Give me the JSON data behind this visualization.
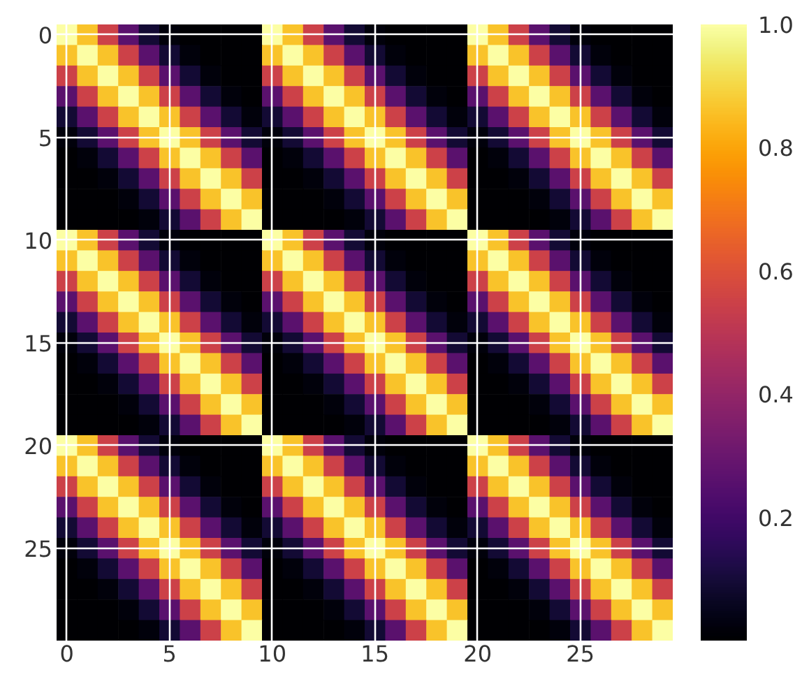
{
  "chart_data": {
    "type": "heatmap",
    "categories": [
      "0",
      null,
      null,
      null,
      null,
      "5",
      null,
      null,
      null,
      null,
      "10",
      null,
      null,
      null,
      null,
      "15",
      null,
      null,
      null,
      null,
      "20",
      null,
      null,
      null,
      null,
      "25",
      null,
      null,
      null,
      null
    ],
    "y_categories": [
      "0",
      null,
      null,
      null,
      null,
      "5",
      null,
      null,
      null,
      null,
      "10",
      null,
      null,
      null,
      null,
      "15",
      null,
      null,
      null,
      null,
      "20",
      null,
      null,
      null,
      null,
      "25",
      null,
      null,
      null,
      null
    ],
    "cells": [
      [
        1.0,
        0.86,
        0.55,
        0.26,
        0.09,
        0.02,
        0,
        0,
        0,
        0,
        1.0,
        0.86,
        0.55,
        0.26,
        0.09,
        0.02,
        0,
        0,
        0,
        0,
        1.0,
        0.86,
        0.55,
        0.26,
        0.09,
        0.02,
        0,
        0,
        0,
        0
      ],
      [
        0.86,
        1.0,
        0.86,
        0.55,
        0.26,
        0.09,
        0.02,
        0,
        0,
        0,
        0.86,
        1.0,
        0.86,
        0.55,
        0.26,
        0.09,
        0.02,
        0,
        0,
        0,
        0.86,
        1.0,
        0.86,
        0.55,
        0.26,
        0.09,
        0.02,
        0,
        0,
        0
      ],
      [
        0.55,
        0.86,
        1.0,
        0.86,
        0.55,
        0.26,
        0.09,
        0.02,
        0,
        0,
        0.55,
        0.86,
        1.0,
        0.86,
        0.55,
        0.26,
        0.09,
        0.02,
        0,
        0,
        0.55,
        0.86,
        1.0,
        0.86,
        0.55,
        0.26,
        0.09,
        0.02,
        0,
        0
      ],
      [
        0.26,
        0.55,
        0.86,
        1.0,
        0.86,
        0.55,
        0.26,
        0.09,
        0.02,
        0,
        0.26,
        0.55,
        0.86,
        1.0,
        0.86,
        0.55,
        0.26,
        0.09,
        0.02,
        0,
        0.26,
        0.55,
        0.86,
        1.0,
        0.86,
        0.55,
        0.26,
        0.09,
        0.02,
        0
      ],
      [
        0.09,
        0.26,
        0.55,
        0.86,
        1.0,
        0.86,
        0.55,
        0.26,
        0.09,
        0.02,
        0.09,
        0.26,
        0.55,
        0.86,
        1.0,
        0.86,
        0.55,
        0.26,
        0.09,
        0.02,
        0.09,
        0.26,
        0.55,
        0.86,
        1.0,
        0.86,
        0.55,
        0.26,
        0.09,
        0.02
      ],
      [
        0.02,
        0.09,
        0.26,
        0.55,
        0.86,
        1.0,
        0.86,
        0.55,
        0.26,
        0.09,
        0.02,
        0.09,
        0.26,
        0.55,
        0.86,
        1.0,
        0.86,
        0.55,
        0.26,
        0.09,
        0.02,
        0.09,
        0.26,
        0.55,
        0.86,
        1.0,
        0.86,
        0.55,
        0.26,
        0.09
      ],
      [
        0,
        0.02,
        0.09,
        0.26,
        0.55,
        0.86,
        1.0,
        0.86,
        0.55,
        0.26,
        0,
        0.02,
        0.09,
        0.26,
        0.55,
        0.86,
        1.0,
        0.86,
        0.55,
        0.26,
        0,
        0.02,
        0.09,
        0.26,
        0.55,
        0.86,
        1.0,
        0.86,
        0.55,
        0.26
      ],
      [
        0,
        0,
        0.02,
        0.09,
        0.26,
        0.55,
        0.86,
        1.0,
        0.86,
        0.55,
        0,
        0,
        0.02,
        0.09,
        0.26,
        0.55,
        0.86,
        1.0,
        0.86,
        0.55,
        0,
        0,
        0.02,
        0.09,
        0.26,
        0.55,
        0.86,
        1.0,
        0.86,
        0.55
      ],
      [
        0,
        0,
        0,
        0.02,
        0.09,
        0.26,
        0.55,
        0.86,
        1.0,
        0.86,
        0,
        0,
        0,
        0.02,
        0.09,
        0.26,
        0.55,
        0.86,
        1.0,
        0.86,
        0,
        0,
        0,
        0.02,
        0.09,
        0.26,
        0.55,
        0.86,
        1.0,
        0.86
      ],
      [
        0,
        0,
        0,
        0,
        0.02,
        0.09,
        0.26,
        0.55,
        0.86,
        1.0,
        0,
        0,
        0,
        0,
        0.02,
        0.09,
        0.26,
        0.55,
        0.86,
        1.0,
        0,
        0,
        0,
        0,
        0.02,
        0.09,
        0.26,
        0.55,
        0.86,
        1.0
      ],
      [
        1.0,
        0.86,
        0.55,
        0.26,
        0.09,
        0.02,
        0,
        0,
        0,
        0,
        1.0,
        0.86,
        0.55,
        0.26,
        0.09,
        0.02,
        0,
        0,
        0,
        0,
        1.0,
        0.86,
        0.55,
        0.26,
        0.09,
        0.02,
        0,
        0,
        0,
        0
      ],
      [
        0.86,
        1.0,
        0.86,
        0.55,
        0.26,
        0.09,
        0.02,
        0,
        0,
        0,
        0.86,
        1.0,
        0.86,
        0.55,
        0.26,
        0.09,
        0.02,
        0,
        0,
        0,
        0.86,
        1.0,
        0.86,
        0.55,
        0.26,
        0.09,
        0.02,
        0,
        0,
        0
      ],
      [
        0.55,
        0.86,
        1.0,
        0.86,
        0.55,
        0.26,
        0.09,
        0.02,
        0,
        0,
        0.55,
        0.86,
        1.0,
        0.86,
        0.55,
        0.26,
        0.09,
        0.02,
        0,
        0,
        0.55,
        0.86,
        1.0,
        0.86,
        0.55,
        0.26,
        0.09,
        0.02,
        0,
        0
      ],
      [
        0.26,
        0.55,
        0.86,
        1.0,
        0.86,
        0.55,
        0.26,
        0.09,
        0.02,
        0,
        0.26,
        0.55,
        0.86,
        1.0,
        0.86,
        0.55,
        0.26,
        0.09,
        0.02,
        0,
        0.26,
        0.55,
        0.86,
        1.0,
        0.86,
        0.55,
        0.26,
        0.09,
        0.02,
        0
      ],
      [
        0.09,
        0.26,
        0.55,
        0.86,
        1.0,
        0.86,
        0.55,
        0.26,
        0.09,
        0.02,
        0.09,
        0.26,
        0.55,
        0.86,
        1.0,
        0.86,
        0.55,
        0.26,
        0.09,
        0.02,
        0.09,
        0.26,
        0.55,
        0.86,
        1.0,
        0.86,
        0.55,
        0.26,
        0.09,
        0.02
      ],
      [
        0.02,
        0.09,
        0.26,
        0.55,
        0.86,
        1.0,
        0.86,
        0.55,
        0.26,
        0.09,
        0.02,
        0.09,
        0.26,
        0.55,
        0.86,
        1.0,
        0.86,
        0.55,
        0.26,
        0.09,
        0.02,
        0.09,
        0.26,
        0.55,
        0.86,
        1.0,
        0.86,
        0.55,
        0.26,
        0.09
      ],
      [
        0,
        0.02,
        0.09,
        0.26,
        0.55,
        0.86,
        1.0,
        0.86,
        0.55,
        0.26,
        0,
        0.02,
        0.09,
        0.26,
        0.55,
        0.86,
        1.0,
        0.86,
        0.55,
        0.26,
        0,
        0.02,
        0.09,
        0.26,
        0.55,
        0.86,
        1.0,
        0.86,
        0.55,
        0.26
      ],
      [
        0,
        0,
        0.02,
        0.09,
        0.26,
        0.55,
        0.86,
        1.0,
        0.86,
        0.55,
        0,
        0,
        0.02,
        0.09,
        0.26,
        0.55,
        0.86,
        1.0,
        0.86,
        0.55,
        0,
        0,
        0.02,
        0.09,
        0.26,
        0.55,
        0.86,
        1.0,
        0.86,
        0.55
      ],
      [
        0,
        0,
        0,
        0.02,
        0.09,
        0.26,
        0.55,
        0.86,
        1.0,
        0.86,
        0,
        0,
        0,
        0.02,
        0.09,
        0.26,
        0.55,
        0.86,
        1.0,
        0.86,
        0,
        0,
        0,
        0.02,
        0.09,
        0.26,
        0.55,
        0.86,
        1.0,
        0.86
      ],
      [
        0,
        0,
        0,
        0,
        0.02,
        0.09,
        0.26,
        0.55,
        0.86,
        1.0,
        0,
        0,
        0,
        0,
        0.02,
        0.09,
        0.26,
        0.55,
        0.86,
        1.0,
        0,
        0,
        0,
        0,
        0.02,
        0.09,
        0.26,
        0.55,
        0.86,
        1.0
      ],
      [
        1.0,
        0.86,
        0.55,
        0.26,
        0.09,
        0.02,
        0,
        0,
        0,
        0,
        1.0,
        0.86,
        0.55,
        0.26,
        0.09,
        0.02,
        0,
        0,
        0,
        0,
        1.0,
        0.86,
        0.55,
        0.26,
        0.09,
        0.02,
        0,
        0,
        0,
        0
      ],
      [
        0.86,
        1.0,
        0.86,
        0.55,
        0.26,
        0.09,
        0.02,
        0,
        0,
        0,
        0.86,
        1.0,
        0.86,
        0.55,
        0.26,
        0.09,
        0.02,
        0,
        0,
        0,
        0.86,
        1.0,
        0.86,
        0.55,
        0.26,
        0.09,
        0.02,
        0,
        0,
        0
      ],
      [
        0.55,
        0.86,
        1.0,
        0.86,
        0.55,
        0.26,
        0.09,
        0.02,
        0,
        0,
        0.55,
        0.86,
        1.0,
        0.86,
        0.55,
        0.26,
        0.09,
        0.02,
        0,
        0,
        0.55,
        0.86,
        1.0,
        0.86,
        0.55,
        0.26,
        0.09,
        0.02,
        0,
        0
      ],
      [
        0.26,
        0.55,
        0.86,
        1.0,
        0.86,
        0.55,
        0.26,
        0.09,
        0.02,
        0,
        0.26,
        0.55,
        0.86,
        1.0,
        0.86,
        0.55,
        0.26,
        0.09,
        0.02,
        0,
        0.26,
        0.55,
        0.86,
        1.0,
        0.86,
        0.55,
        0.26,
        0.09,
        0.02,
        0
      ],
      [
        0.09,
        0.26,
        0.55,
        0.86,
        1.0,
        0.86,
        0.55,
        0.26,
        0.09,
        0.02,
        0.09,
        0.26,
        0.55,
        0.86,
        1.0,
        0.86,
        0.55,
        0.26,
        0.09,
        0.02,
        0.09,
        0.26,
        0.55,
        0.86,
        1.0,
        0.86,
        0.55,
        0.26,
        0.09,
        0.02
      ],
      [
        0.02,
        0.09,
        0.26,
        0.55,
        0.86,
        1.0,
        0.86,
        0.55,
        0.26,
        0.09,
        0.02,
        0.09,
        0.26,
        0.55,
        0.86,
        1.0,
        0.86,
        0.55,
        0.26,
        0.09,
        0.02,
        0.09,
        0.26,
        0.55,
        0.86,
        1.0,
        0.86,
        0.55,
        0.26,
        0.09
      ],
      [
        0,
        0.02,
        0.09,
        0.26,
        0.55,
        0.86,
        1.0,
        0.86,
        0.55,
        0.26,
        0,
        0.02,
        0.09,
        0.26,
        0.55,
        0.86,
        1.0,
        0.86,
        0.55,
        0.26,
        0,
        0.02,
        0.09,
        0.26,
        0.55,
        0.86,
        1.0,
        0.86,
        0.55,
        0.26
      ],
      [
        0,
        0,
        0.02,
        0.09,
        0.26,
        0.55,
        0.86,
        1.0,
        0.86,
        0.55,
        0,
        0,
        0.02,
        0.09,
        0.26,
        0.55,
        0.86,
        1.0,
        0.86,
        0.55,
        0,
        0,
        0.02,
        0.09,
        0.26,
        0.55,
        0.86,
        1.0,
        0.86,
        0.55
      ],
      [
        0,
        0,
        0,
        0.02,
        0.09,
        0.26,
        0.55,
        0.86,
        1.0,
        0.86,
        0,
        0,
        0,
        0.02,
        0.09,
        0.26,
        0.55,
        0.86,
        1.0,
        0.86,
        0,
        0,
        0,
        0.02,
        0.09,
        0.26,
        0.55,
        0.86,
        1.0,
        0.86
      ],
      [
        0,
        0,
        0,
        0,
        0.02,
        0.09,
        0.26,
        0.55,
        0.86,
        1.0,
        0,
        0,
        0,
        0,
        0.02,
        0.09,
        0.26,
        0.55,
        0.86,
        1.0,
        0,
        0,
        0,
        0,
        0.02,
        0.09,
        0.26,
        0.55,
        0.86,
        1.0
      ]
    ],
    "clim": [
      0,
      1
    ],
    "cticks": [
      0.2,
      0.4,
      0.6,
      0.8,
      {
        "value": 1.0,
        "label": "1.0"
      }
    ],
    "grid": true
  }
}
